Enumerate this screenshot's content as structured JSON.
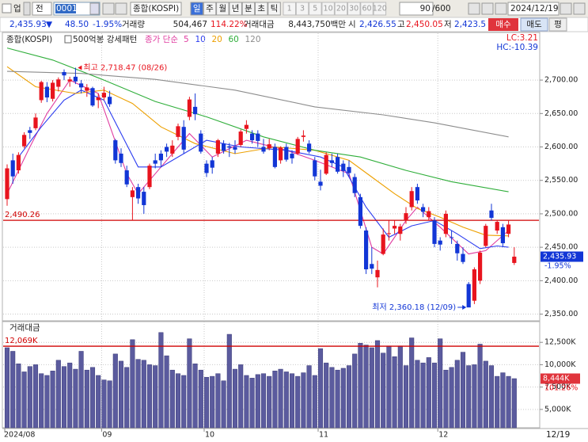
{
  "toolbar": {
    "market": "업",
    "scope": "전",
    "code": "0001",
    "name": "종합(KOSPI)",
    "periods": [
      "일",
      "주",
      "월",
      "년",
      "분",
      "초",
      "틱"
    ],
    "intervals": [
      "1",
      "3",
      "5",
      "10",
      "20",
      "30",
      "60",
      "120"
    ],
    "count": "90",
    "count_max": "/600",
    "date": "2024/12/19"
  },
  "quote": {
    "price": "2,435.93",
    "arrow": "▼",
    "change": "48.50",
    "change_pct": "-1.95%",
    "volume_label": "거래량",
    "volume": "504,467",
    "volume_pct": "114.22%",
    "value_label": "거래대금",
    "value": "8,443,750백만",
    "open_label": "시",
    "open": "2,426.55",
    "high_label": "고",
    "high": "2,450.05",
    "low_label": "저",
    "low": "2,423.5",
    "buy": "매수",
    "sell": "매도",
    "extra": "평"
  },
  "chart_data": {
    "type": "candlestick",
    "name": "종합(KOSPI)",
    "legend_pattern": "500억봉 강세패턴",
    "legend_ma": "종가 단순",
    "lc": "LC:3.21",
    "hc": "HC:-10.39",
    "up_color": "#e8141e",
    "down_color": "#1236d6",
    "open": [
      2522,
      2580,
      2565,
      2601,
      2625,
      2628,
      2670,
      2690,
      2672,
      2690,
      2712,
      2698,
      2705,
      2695,
      2684,
      2688,
      2670,
      2674,
      2675,
      2610,
      2590,
      2565,
      2525,
      2540,
      2533,
      2540,
      2580,
      2590,
      2600,
      2590,
      2615,
      2630,
      2645,
      2660,
      2620,
      2575,
      2580,
      2590,
      2605,
      2601,
      2600,
      2603,
      2627,
      2620,
      2620,
      2600,
      2598,
      2600,
      2580,
      2600,
      2590,
      2590,
      2615,
      2605,
      2580,
      2548,
      2560,
      2580,
      2585,
      2575,
      2570,
      2555,
      2525,
      2475,
      2425,
      2405,
      2440,
      2470,
      2478,
      2470,
      2490,
      2510,
      2540,
      2510,
      2495,
      2490,
      2460,
      2470,
      2465,
      2455,
      2440,
      2395,
      2370,
      2400,
      2452,
      2505,
      2475,
      2480,
      2470,
      2426.55
    ],
    "high": [
      2574,
      2590,
      2592,
      2622,
      2630,
      2650,
      2699,
      2697,
      2700,
      2704,
      2716,
      2705,
      2718.47,
      2700,
      2694,
      2690,
      2680,
      2690,
      2684,
      2612,
      2598,
      2572,
      2540,
      2545,
      2540,
      2575,
      2590,
      2595,
      2605,
      2610,
      2635,
      2640,
      2675,
      2680,
      2625,
      2580,
      2585,
      2612,
      2610,
      2606,
      2610,
      2626,
      2640,
      2625,
      2625,
      2612,
      2612,
      2605,
      2601,
      2605,
      2595,
      2615,
      2625,
      2610,
      2585,
      2566,
      2592,
      2590,
      2590,
      2580,
      2580,
      2560,
      2530,
      2480,
      2450,
      2430,
      2478,
      2490,
      2490,
      2485,
      2510,
      2540,
      2545,
      2515,
      2510,
      2495,
      2465,
      2505,
      2475,
      2460,
      2450,
      2398,
      2420,
      2445,
      2485,
      2515,
      2490,
      2485,
      2490,
      2450.05
    ],
    "low": [
      2512,
      2545,
      2560,
      2598,
      2612,
      2625,
      2666,
      2667,
      2668,
      2683,
      2700,
      2690,
      2694,
      2680,
      2675,
      2660,
      2658,
      2670,
      2660,
      2575,
      2570,
      2540,
      2490,
      2515,
      2500,
      2537,
      2568,
      2570,
      2585,
      2585,
      2610,
      2590,
      2640,
      2640,
      2590,
      2555,
      2560,
      2585,
      2590,
      2585,
      2590,
      2600,
      2620,
      2605,
      2600,
      2590,
      2595,
      2568,
      2575,
      2578,
      2575,
      2588,
      2608,
      2590,
      2550,
      2535,
      2558,
      2570,
      2560,
      2555,
      2555,
      2525,
      2478,
      2410,
      2410,
      2390,
      2438,
      2460,
      2470,
      2460,
      2485,
      2505,
      2515,
      2495,
      2490,
      2450,
      2445,
      2465,
      2455,
      2430,
      2425,
      2360.18,
      2365,
      2395,
      2450,
      2490,
      2470,
      2450,
      2465,
      2423.5
    ],
    "close": [
      2568,
      2556,
      2588,
      2618,
      2621,
      2644,
      2697,
      2674,
      2696,
      2701,
      2707,
      2701,
      2698,
      2689,
      2689,
      2662,
      2674,
      2681,
      2664,
      2580,
      2576,
      2544,
      2535,
      2523,
      2513,
      2572,
      2575,
      2580,
      2593,
      2602,
      2631,
      2596,
      2671,
      2649,
      2593,
      2561,
      2569,
      2610,
      2594,
      2599,
      2596,
      2623,
      2633,
      2610,
      2609,
      2593,
      2604,
      2570,
      2599,
      2581,
      2583,
      2612,
      2617,
      2593,
      2556,
      2542,
      2588,
      2576,
      2563,
      2564,
      2561,
      2531,
      2482,
      2417,
      2418,
      2416,
      2469,
      2471,
      2482,
      2481,
      2501,
      2534,
      2520,
      2503,
      2504,
      2455,
      2454,
      2500,
      2464,
      2441,
      2428,
      2360,
      2417,
      2442,
      2482,
      2494,
      2488,
      2456,
      2484,
      2435.93
    ],
    "ylim": [
      2340,
      2770
    ],
    "yticks": [
      {
        "value": 2350,
        "label": "2,350.00"
      },
      {
        "value": 2400,
        "label": "2,400.00"
      },
      {
        "value": 2450,
        "label": "2,450.00"
      },
      {
        "value": 2500,
        "label": "2,500.00"
      },
      {
        "value": 2550,
        "label": "2,550.00"
      },
      {
        "value": 2600,
        "label": "2,600.00"
      },
      {
        "value": 2650,
        "label": "2,650.00"
      },
      {
        "value": 2700,
        "label": "2,700.00"
      }
    ],
    "xticks": [
      {
        "value": 0,
        "label": "2024/08"
      },
      {
        "value": 17,
        "label": "09"
      },
      {
        "value": 35,
        "label": "10"
      },
      {
        "value": 55,
        "label": "11"
      },
      {
        "value": 76,
        "label": "12"
      }
    ],
    "x_end_label": "12/19",
    "grid": true,
    "high_note": "최고 2,718.47 (08/26)",
    "low_note": "최저 2,360.18 (12/09)",
    "ref_line": {
      "value": 2490.26,
      "label": "2,490.26",
      "color": "#d00000"
    },
    "last_price": {
      "value": 2435.93,
      "label": "2,435.93"
    },
    "last_change": "-1.95%",
    "ma": [
      {
        "name": "5",
        "color": "#e03ca0",
        "x": [
          0,
          4,
          7,
          11,
          16,
          21,
          23,
          26,
          32,
          36,
          42,
          49,
          54,
          60,
          64,
          66,
          70,
          72,
          76,
          81,
          84,
          88
        ],
        "values": [
          2530,
          2600,
          2650,
          2700,
          2680,
          2560,
          2530,
          2560,
          2620,
          2585,
          2610,
          2595,
          2580,
          2560,
          2450,
          2440,
          2490,
          2510,
          2480,
          2440,
          2445,
          2475
        ]
      },
      {
        "name": "10",
        "color": "#2b3cf0",
        "x": [
          2,
          6,
          10,
          13,
          17,
          20,
          23,
          27,
          31,
          35,
          41,
          49,
          55,
          59,
          63,
          67,
          71,
          75,
          79,
          83,
          86,
          88
        ],
        "values": [
          2585,
          2630,
          2670,
          2685,
          2670,
          2620,
          2570,
          2570,
          2590,
          2610,
          2600,
          2595,
          2585,
          2570,
          2510,
          2465,
          2482,
          2490,
          2470,
          2448,
          2452,
          2450
        ]
      },
      {
        "name": "20",
        "color": "#eda000",
        "x": [
          0,
          5,
          12,
          17,
          22,
          27,
          33,
          40,
          47,
          54,
          60,
          64,
          68,
          72,
          76,
          80,
          84,
          88
        ],
        "values": [
          2720,
          2690,
          2680,
          2685,
          2665,
          2630,
          2605,
          2590,
          2600,
          2595,
          2580,
          2555,
          2530,
          2508,
          2495,
          2480,
          2468,
          2467
        ]
      },
      {
        "name": "60",
        "color": "#2fae3a",
        "x": [
          0,
          8,
          17,
          26,
          35,
          45,
          54,
          62,
          70,
          78,
          88
        ],
        "values": [
          2748,
          2730,
          2700,
          2668,
          2645,
          2615,
          2595,
          2585,
          2565,
          2548,
          2533
        ]
      },
      {
        "name": "120",
        "color": "#8c8c8c",
        "x": [
          0,
          13,
          26,
          40,
          54,
          66,
          75,
          88
        ],
        "values": [
          2713,
          2710,
          2701,
          2685,
          2660,
          2648,
          2636,
          2615
        ]
      }
    ],
    "volume": {
      "title": "거래대금",
      "color": "#5b5b9e",
      "values": [
        11900,
        11500,
        10100,
        9200,
        9800,
        10000,
        9000,
        8800,
        9300,
        10500,
        9800,
        10200,
        9500,
        11500,
        9400,
        9700,
        8800,
        8300,
        8200,
        11200,
        10400,
        9700,
        12800,
        10600,
        10500,
        10000,
        9900,
        13600,
        11000,
        9400,
        9000,
        8800,
        12900,
        10100,
        9400,
        8600,
        8700,
        9000,
        8200,
        13400,
        9500,
        10000,
        8800,
        8500,
        8900,
        9000,
        8700,
        9300,
        9500,
        9200,
        9000,
        8700,
        9100,
        9900,
        8800,
        11800,
        10200,
        9700,
        9400,
        9600,
        9900,
        11200,
        12400,
        12200,
        11900,
        12700,
        11300,
        12100,
        10900,
        12100,
        9900,
        13000,
        10500,
        10200,
        10800,
        10200,
        12900,
        9400,
        9700,
        10500,
        11400,
        9900,
        10000,
        12300,
        10400,
        9900,
        8700,
        9100,
        8700,
        8444
      ],
      "ylim": [
        2950,
        14820
      ],
      "yticks": [
        {
          "value": 5000,
          "label": "5,000K"
        },
        {
          "value": 7500,
          "label": "7,500K"
        },
        {
          "value": 10000,
          "label": "10,000K"
        },
        {
          "value": 12500,
          "label": "12,500K"
        }
      ],
      "ref_line": {
        "value": 12069,
        "label": "12,069K"
      },
      "last": {
        "value": 8444,
        "label": "8,444K"
      },
      "last_pct": "101.26%"
    }
  }
}
